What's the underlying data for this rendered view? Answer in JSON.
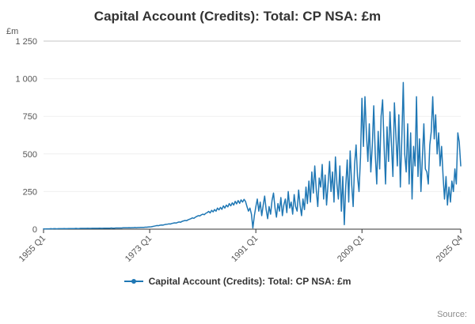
{
  "page": {
    "source_label": "Source:"
  },
  "chart_data": {
    "type": "line",
    "title": "Capital Account (Credits): Total: CP NSA: £m",
    "xlabel": "",
    "ylabel": "£m",
    "ylim": [
      0,
      1250
    ],
    "grid": "horizontal-top-only",
    "legend_position": "bottom",
    "x_start": "1955 Q1",
    "x_end": "2025 Q4",
    "frequency": "quarterly",
    "y_ticks": [
      {
        "value": 0,
        "label": "0"
      },
      {
        "value": 250,
        "label": "250"
      },
      {
        "value": 500,
        "label": "500"
      },
      {
        "value": 750,
        "label": "750"
      },
      {
        "value": 1000,
        "label": "1 000"
      },
      {
        "value": 1250,
        "label": "1 250"
      }
    ],
    "x_ticks": [
      {
        "index": 0,
        "label": "1955 Q1"
      },
      {
        "index": 72,
        "label": "1973 Q1"
      },
      {
        "index": 144,
        "label": "1991 Q1"
      },
      {
        "index": 216,
        "label": "2009 Q1"
      },
      {
        "index": 283,
        "label": "2025 Q4"
      }
    ],
    "series": [
      {
        "name": "Capital Account (Credits): Total: CP NSA: £m",
        "color": "#1f77b4",
        "values": [
          2,
          1,
          2,
          2,
          2,
          3,
          2,
          3,
          3,
          2,
          3,
          3,
          3,
          3,
          4,
          3,
          3,
          4,
          4,
          4,
          4,
          4,
          5,
          4,
          4,
          5,
          5,
          5,
          5,
          5,
          6,
          5,
          5,
          6,
          6,
          6,
          6,
          6,
          7,
          6,
          6,
          7,
          7,
          7,
          7,
          7,
          8,
          7,
          7,
          8,
          8,
          8,
          8,
          8,
          9,
          9,
          9,
          9,
          10,
          9,
          10,
          10,
          11,
          10,
          11,
          11,
          12,
          12,
          12,
          13,
          13,
          14,
          15,
          16,
          18,
          20,
          22,
          24,
          23,
          26,
          28,
          27,
          30,
          32,
          33,
          35,
          34,
          38,
          40,
          42,
          41,
          45,
          48,
          46,
          52,
          55,
          58,
          56,
          62,
          66,
          70,
          75,
          72,
          80,
          85,
          90,
          88,
          95,
          100,
          96,
          105,
          110,
          118,
          108,
          125,
          115,
          130,
          120,
          140,
          128,
          145,
          132,
          155,
          140,
          160,
          148,
          170,
          155,
          175,
          160,
          185,
          168,
          190,
          172,
          195,
          180,
          198,
          185,
          150,
          120,
          140,
          100,
          8,
          90,
          150,
          200,
          120,
          180,
          90,
          160,
          220,
          130,
          70,
          150,
          100,
          190,
          240,
          140,
          80,
          170,
          120,
          210,
          90,
          160,
          200,
          110,
          250,
          140,
          180,
          100,
          230,
          150,
          120,
          260,
          160,
          90,
          200,
          130,
          280,
          170,
          320,
          180,
          380,
          240,
          420,
          260,
          150,
          340,
          280,
          430,
          200,
          360,
          160,
          300,
          450,
          250,
          380,
          180,
          480,
          300,
          200,
          420,
          120,
          350,
          30,
          280,
          460,
          180,
          520,
          300,
          150,
          430,
          560,
          350,
          250,
          480,
          870,
          550,
          880,
          640,
          450,
          700,
          380,
          560,
          820,
          500,
          300,
          650,
          400,
          750,
          860,
          550,
          300,
          680,
          450,
          780,
          560,
          350,
          840,
          620,
          420,
          760,
          280,
          590,
          975,
          500,
          380,
          700,
          300,
          640,
          200,
          550,
          420,
          880,
          350,
          600,
          250,
          480,
          700,
          400,
          380,
          300,
          560,
          650,
          880,
          600,
          760,
          500,
          640,
          420,
          550,
          350,
          200,
          350,
          160,
          280,
          180,
          320,
          250,
          400,
          300,
          640,
          580,
          420
        ]
      }
    ]
  }
}
